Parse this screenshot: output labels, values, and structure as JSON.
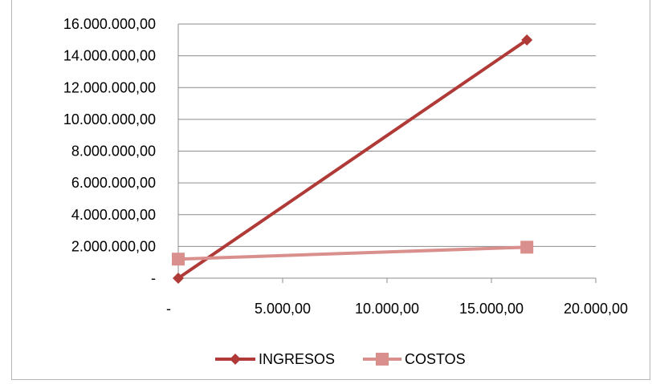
{
  "chart_data": {
    "type": "scatter",
    "title": "",
    "xlabel": "",
    "ylabel": "",
    "xlim": [
      0,
      20000
    ],
    "ylim": [
      0,
      16000000
    ],
    "x_ticks": [
      0,
      5000,
      10000,
      15000,
      20000
    ],
    "x_tick_labels": [
      "-",
      "5.000,00",
      "10.000,00",
      "15.000,00",
      "20.000,00"
    ],
    "y_ticks": [
      0,
      2000000,
      4000000,
      6000000,
      8000000,
      10000000,
      12000000,
      14000000,
      16000000
    ],
    "y_tick_labels": [
      "-",
      "2.000.000,00",
      "4.000.000,00",
      "6.000.000,00",
      "8.000.000,00",
      "10.000.000,00",
      "12.000.000,00",
      "14.000.000,00",
      "16.000.000,00"
    ],
    "grid": true,
    "legend": "bottom",
    "series": [
      {
        "name": "INGRESOS",
        "color": "#b03a37",
        "marker": "diamond",
        "x": [
          0,
          16700
        ],
        "y": [
          0,
          15000000
        ]
      },
      {
        "name": "COSTOS",
        "color": "#d98f8c",
        "marker": "square",
        "x": [
          0,
          16700
        ],
        "y": [
          1200000,
          1950000
        ]
      }
    ]
  }
}
